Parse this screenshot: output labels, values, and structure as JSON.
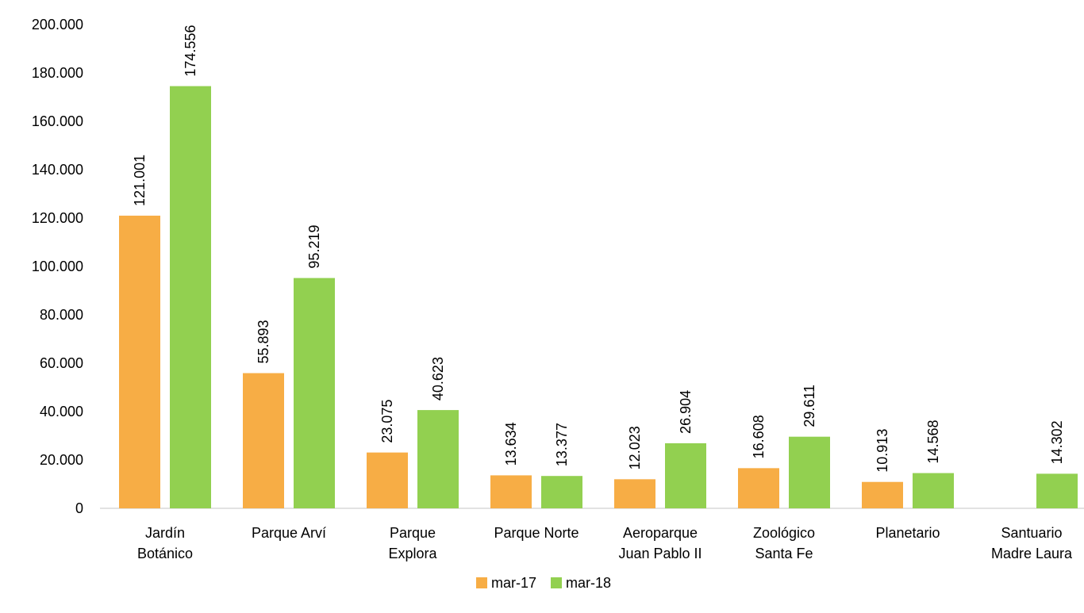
{
  "chart_data": {
    "type": "bar",
    "categories": [
      "Jardín\nBotánico",
      "Parque Arví",
      "Parque\nExplora",
      "Parque Norte",
      "Aeroparque\nJuan Pablo II",
      "Zoológico\nSanta Fe",
      "Planetario",
      "Santuario\nMadre Laura"
    ],
    "series": [
      {
        "name": "mar-17",
        "color": "#f7ad45",
        "values": [
          121001,
          55893,
          23075,
          13634,
          12023,
          16608,
          10913,
          null
        ],
        "value_labels": [
          "121.001",
          "55.893",
          "23.075",
          "13.634",
          "12.023",
          "16.608",
          "10.913",
          null
        ]
      },
      {
        "name": "mar-18",
        "color": "#92d050",
        "values": [
          174556,
          95219,
          40623,
          13377,
          26904,
          29611,
          14568,
          14302
        ],
        "value_labels": [
          "174.556",
          "95.219",
          "40.623",
          "13.377",
          "26.904",
          "29.611",
          "14.568",
          "14.302"
        ]
      }
    ],
    "ylim": [
      0,
      200000
    ],
    "yticks": [
      0,
      {
        "value": 20000,
        "label": "20.000"
      },
      {
        "value": 40000,
        "label": "40.000"
      },
      {
        "value": 60000,
        "label": "60.000"
      },
      {
        "value": 80000,
        "label": "80.000"
      },
      {
        "value": 100000,
        "label": "100.000"
      },
      {
        "value": 120000,
        "label": "120.000"
      },
      {
        "value": 140000,
        "label": "140.000"
      },
      {
        "value": 160000,
        "label": "160.000"
      },
      {
        "value": 180000,
        "label": "180.000"
      },
      {
        "value": 200000,
        "label": "200.000"
      }
    ],
    "legend": "bottom"
  }
}
